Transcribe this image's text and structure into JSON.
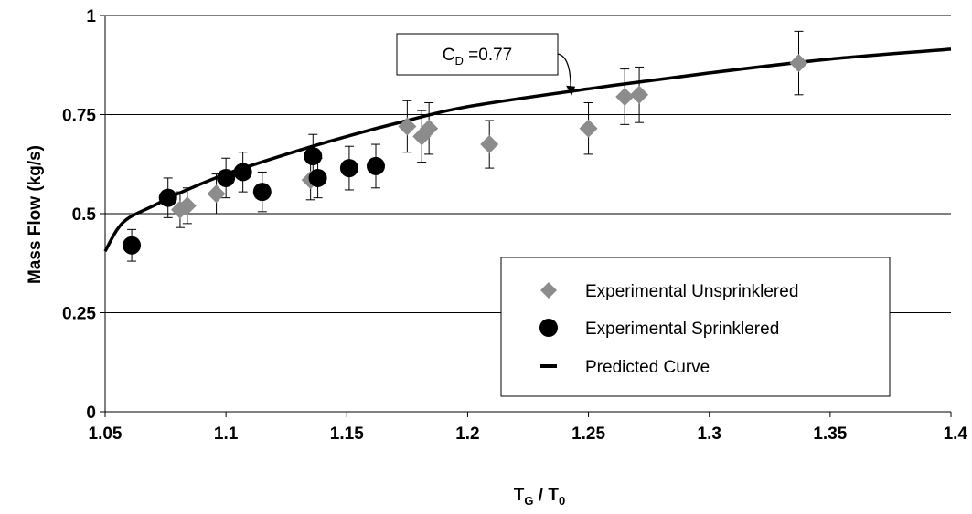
{
  "chart_data": {
    "type": "scatter",
    "title": "",
    "xlabel": {
      "main": "T",
      "sub1": "G",
      "sep": " / T",
      "sub2": "0"
    },
    "ylabel": "Mass Flow (kg/s)",
    "xlim": [
      1.05,
      1.4
    ],
    "ylim": [
      0,
      1
    ],
    "xticks": [
      "1.05",
      "1.1",
      "1.15",
      "1.2",
      "1.25",
      "1.3",
      "1.35",
      "1.4"
    ],
    "xtick_values": [
      1.05,
      1.1,
      1.15,
      1.2,
      1.25,
      1.3,
      1.35,
      1.4
    ],
    "yticks": [
      "0",
      "0.25",
      "0.5",
      "0.75",
      "1"
    ],
    "ytick_values": [
      0,
      0.25,
      0.5,
      0.75,
      1
    ],
    "grid": "horizontal",
    "legend_position": "bottom-right",
    "annotation": {
      "main": "C",
      "sub": "D",
      "rest": " =0.77",
      "target_x": 1.243,
      "target_y": 0.8
    },
    "series": [
      {
        "name": "Experimental Unsprinklered",
        "marker": "diamond",
        "color": "#8c8c8c",
        "x": [
          1.081,
          1.084,
          1.096,
          1.135,
          1.175,
          1.181,
          1.184,
          1.209,
          1.25,
          1.265,
          1.271,
          1.337
        ],
        "y": [
          0.51,
          0.52,
          0.55,
          0.585,
          0.72,
          0.695,
          0.715,
          0.675,
          0.715,
          0.795,
          0.8,
          0.88
        ],
        "err": [
          0.045,
          0.045,
          0.05,
          0.05,
          0.065,
          0.065,
          0.065,
          0.06,
          0.065,
          0.07,
          0.07,
          0.08
        ]
      },
      {
        "name": "Experimental Sprinklered",
        "marker": "circle",
        "color": "#000000",
        "x": [
          1.061,
          1.076,
          1.1,
          1.107,
          1.115,
          1.136,
          1.138,
          1.151,
          1.162
        ],
        "y": [
          0.42,
          0.54,
          0.59,
          0.605,
          0.555,
          0.645,
          0.59,
          0.615,
          0.62
        ],
        "err": [
          0.04,
          0.05,
          0.05,
          0.05,
          0.05,
          0.055,
          0.05,
          0.055,
          0.055
        ]
      },
      {
        "name": "Predicted Curve",
        "marker": "line",
        "color": "#000000",
        "x": [
          1.05,
          1.055,
          1.06,
          1.07,
          1.08,
          1.1,
          1.125,
          1.15,
          1.175,
          1.2,
          1.25,
          1.3,
          1.35,
          1.4
        ],
        "y": [
          0.405,
          0.46,
          0.49,
          0.52,
          0.55,
          0.6,
          0.65,
          0.695,
          0.735,
          0.77,
          0.815,
          0.855,
          0.89,
          0.915
        ]
      }
    ]
  }
}
